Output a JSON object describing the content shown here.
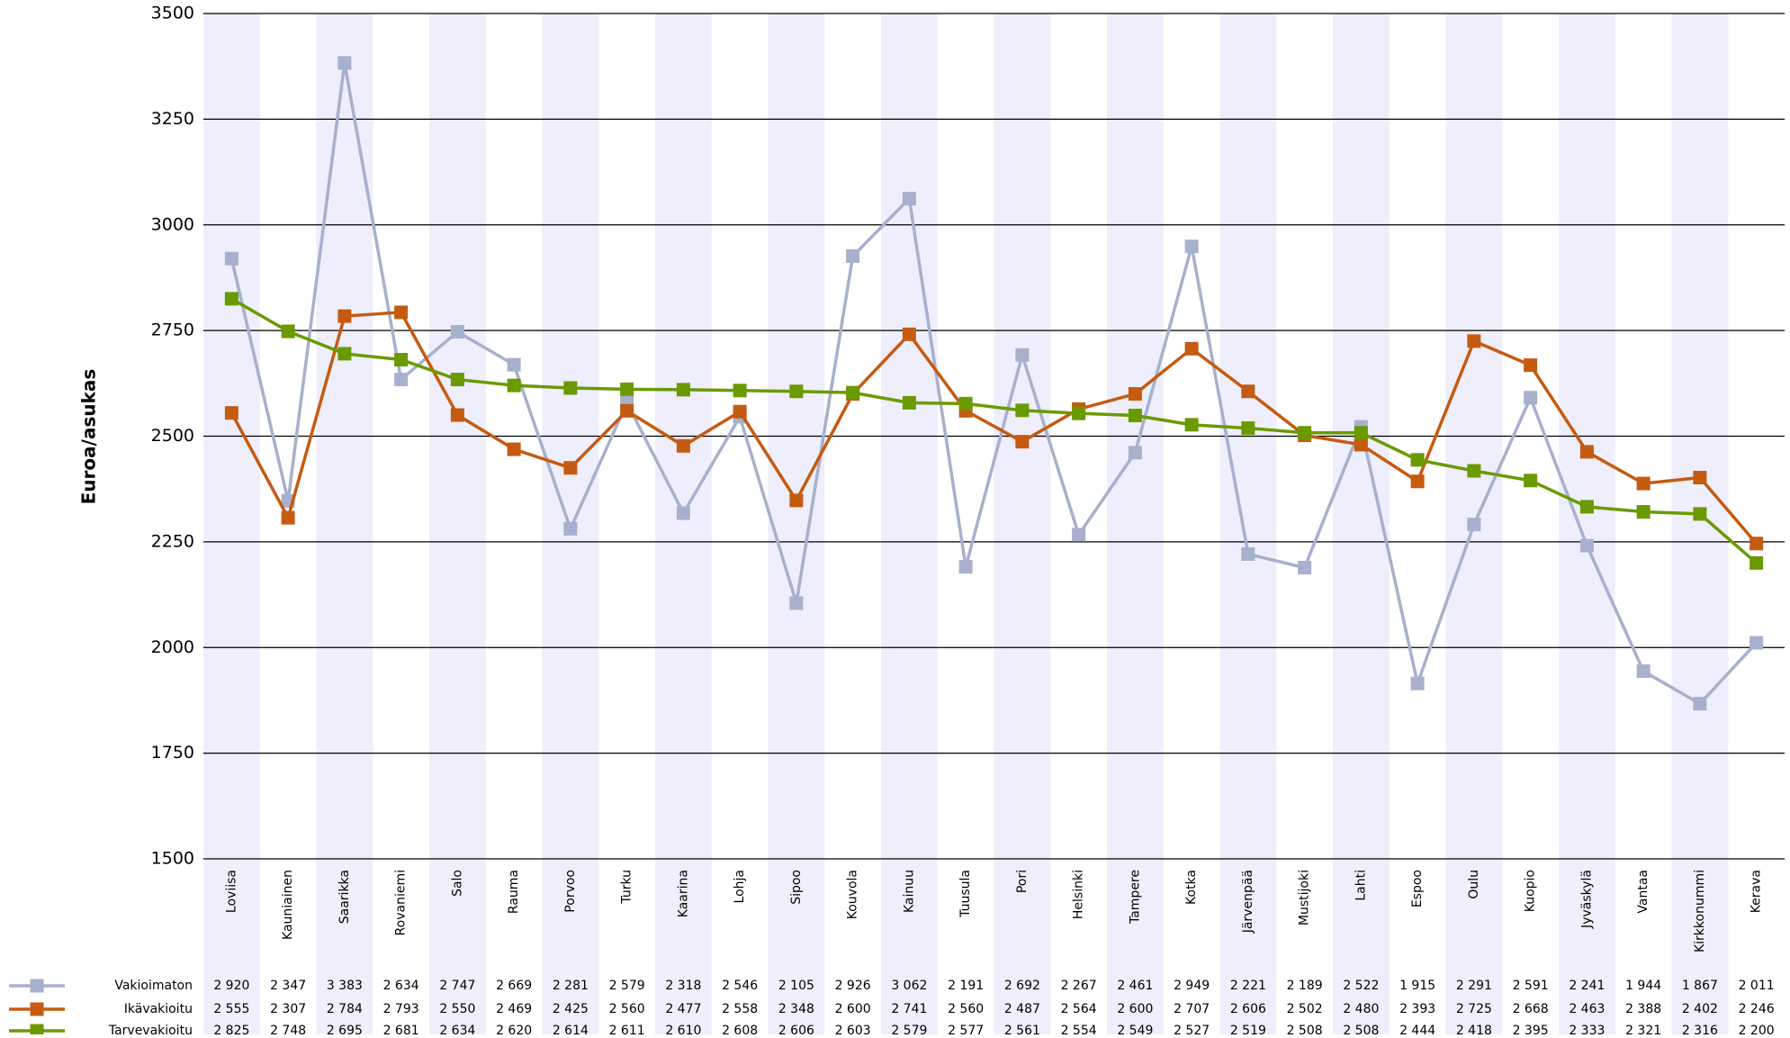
{
  "chart_data": {
    "type": "line",
    "y_label": "Euroa/asukas",
    "categories": [
      "Loviisa",
      "Kauniainen",
      "Saarikka",
      "Rovaniemi",
      "Salo",
      "Rauma",
      "Porvoo",
      "Turku",
      "Kaarina",
      "Lohja",
      "Sipoo",
      "Kouvola",
      "Kainuu",
      "Tuusula",
      "Pori",
      "Helsinki",
      "Tampere",
      "Kotka",
      "Järvenpää",
      "Mustijoki",
      "Lahti",
      "Espoo",
      "Oulu",
      "Kuopio",
      "Jyväskylä",
      "Vantaa",
      "Kirkkonummi",
      "Kerava"
    ],
    "series": [
      {
        "name": "Vakioimaton",
        "color": "#a7b0cc",
        "values": [
          2920,
          2347,
          3383,
          2634,
          2747,
          2669,
          2281,
          2579,
          2318,
          2546,
          2105,
          2926,
          3062,
          2191,
          2692,
          2267,
          2461,
          2949,
          2221,
          2189,
          2522,
          1915,
          2291,
          2591,
          2241,
          1944,
          1867,
          2011
        ],
        "value_labels": [
          "2 920",
          "2 347",
          "3 383",
          "2 634",
          "2 747",
          "2 669",
          "2 281",
          "2 579",
          "2 318",
          "2 546",
          "2 105",
          "2 926",
          "3 062",
          "2 191",
          "2 692",
          "2 267",
          "2 461",
          "2 949",
          "2 221",
          "2 189",
          "2 522",
          "1 915",
          "2 291",
          "2 591",
          "2 241",
          "1 944",
          "1 867",
          "2 011"
        ]
      },
      {
        "name": "Ikävakioitu",
        "color": "#c55a11",
        "values": [
          2555,
          2307,
          2784,
          2793,
          2550,
          2469,
          2425,
          2560,
          2477,
          2558,
          2348,
          2600,
          2741,
          2560,
          2487,
          2564,
          2600,
          2707,
          2606,
          2502,
          2480,
          2393,
          2725,
          2668,
          2463,
          2388,
          2402,
          2246
        ],
        "value_labels": [
          "2 555",
          "2 307",
          "2 784",
          "2 793",
          "2 550",
          "2 469",
          "2 425",
          "2 560",
          "2 477",
          "2 558",
          "2 348",
          "2 600",
          "2 741",
          "2 560",
          "2 487",
          "2 564",
          "2 600",
          "2 707",
          "2 606",
          "2 502",
          "2 480",
          "2 393",
          "2 725",
          "2 668",
          "2 463",
          "2 388",
          "2 402",
          "2 246"
        ]
      },
      {
        "name": "Tarvevakioitu",
        "color": "#6a9a00",
        "values": [
          2825,
          2748,
          2695,
          2681,
          2634,
          2620,
          2614,
          2611,
          2610,
          2608,
          2606,
          2603,
          2579,
          2577,
          2561,
          2554,
          2549,
          2527,
          2519,
          2508,
          2508,
          2444,
          2418,
          2395,
          2333,
          2321,
          2316,
          2200
        ],
        "value_labels": [
          "2 825",
          "2 748",
          "2 695",
          "2 681",
          "2 634",
          "2 620",
          "2 614",
          "2 611",
          "2 610",
          "2 608",
          "2 606",
          "2 603",
          "2 579",
          "2 577",
          "2 561",
          "2 554",
          "2 549",
          "2 527",
          "2 519",
          "2 508",
          "2 508",
          "2 444",
          "2 418",
          "2 395",
          "2 333",
          "2 321",
          "2 316",
          "2 200"
        ]
      }
    ],
    "ylim": [
      1500,
      3500
    ],
    "yticks": [
      1500,
      1750,
      2000,
      2250,
      2500,
      2750,
      3000,
      3250,
      3500
    ],
    "grid": true,
    "band_color": "#eeeefc"
  }
}
